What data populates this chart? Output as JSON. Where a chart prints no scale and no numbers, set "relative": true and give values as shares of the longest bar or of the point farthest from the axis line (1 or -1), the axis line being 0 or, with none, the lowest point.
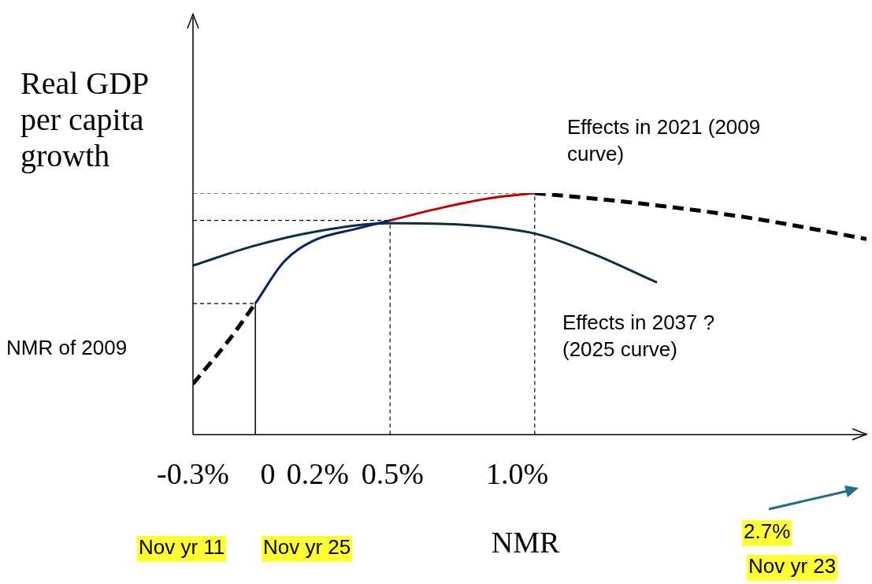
{
  "chart_data": {
    "type": "line",
    "relative": true,
    "ylabel": "Real GDP per capita growth",
    "xlabel": "NMR",
    "xlim": [
      -0.3,
      2.4
    ],
    "xticks": [
      {
        "value": -0.3,
        "label": "-0.3%"
      },
      {
        "value": 0,
        "label": "0"
      },
      {
        "value": 0.2,
        "label": "0.2%"
      },
      {
        "value": 0.5,
        "label": "0.5%"
      },
      {
        "value": 1.0,
        "label": "1.0%"
      }
    ],
    "grid": false,
    "legend": false,
    "marker": "none",
    "annotations": [
      "Effects in 2021 (2009 curve)",
      "Effects in 2037 ? (2025 curve)",
      "NMR of 2009",
      "Nov yr 11",
      "Nov yr 25",
      "2.7%",
      "Nov yr 23"
    ],
    "series": [
      {
        "color": "#000000",
        "line_style": "dashed",
        "x": [
          -0.3,
          -0.157,
          -0.05
        ],
        "values": [
          0.21,
          0.39,
          0.543
        ]
      },
      {
        "color": "#0a1f6e",
        "line_style": "solid",
        "x": [
          -0.05,
          0.065,
          0.19,
          0.35,
          0.49
        ],
        "values": [
          0.543,
          0.716,
          0.806,
          0.851,
          0.887
        ]
      },
      {
        "color": "#c00000",
        "line_style": "solid",
        "x": [
          0.49,
          0.7,
          0.89,
          1.07
        ],
        "values": [
          0.887,
          0.94,
          0.979,
          1.0
        ]
      },
      {
        "color": "#000000",
        "line_style": "dashed",
        "x": [
          1.07,
          1.46,
          1.94,
          2.4
        ],
        "values": [
          1.0,
          0.961,
          0.896,
          0.81
        ]
      },
      {
        "color": "#0d2f3f",
        "line_style": "solid",
        "x": [
          -0.3,
          -0.06,
          0.19,
          0.49,
          0.76,
          1.08,
          1.3,
          1.56
        ],
        "values": [
          0.7,
          0.78,
          0.84,
          0.875,
          0.87,
          0.83,
          0.75,
          0.63
        ]
      },
      {
        "color": "#000000",
        "line_style": "dotted",
        "x": [
          -0.3,
          1.07
        ],
        "values": [
          1.0,
          1.0
        ]
      },
      {
        "color": "#000000",
        "line_style": "dotted",
        "x": [
          -0.3,
          0.49
        ],
        "values": [
          0.887,
          0.887
        ]
      },
      {
        "color": "#000000",
        "line_style": "dotted",
        "x": [
          -0.3,
          -0.05
        ],
        "values": [
          0.543,
          0.543
        ]
      },
      {
        "color": "#000000",
        "line_style": "dotted",
        "x": [
          0.49,
          0.49
        ],
        "values": [
          0,
          0.887
        ]
      },
      {
        "color": "#000000",
        "line_style": "dotted",
        "x": [
          1.07,
          1.07
        ],
        "values": [
          0,
          1.0
        ]
      },
      {
        "color": "#000000",
        "line_style": "solid",
        "x": [
          -0.05,
          -0.05
        ],
        "values": [
          0,
          0.543
        ]
      }
    ]
  }
}
